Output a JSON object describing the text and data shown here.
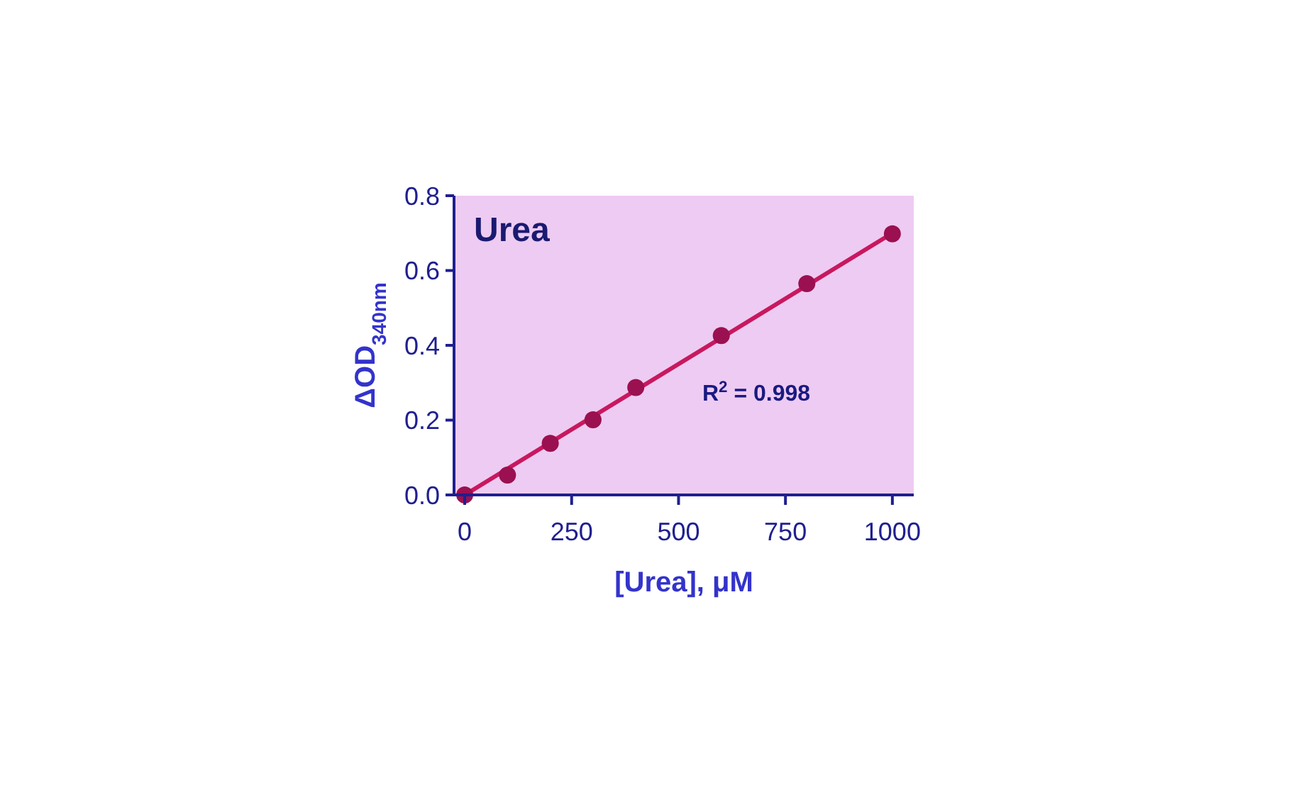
{
  "chart_data": {
    "type": "scatter",
    "title": "Urea",
    "xlabel": "[Urea], μM",
    "ylabel": "ΔOD$_{340nm}$",
    "annotations": [
      "R$^{2}$ = 0.998"
    ],
    "series": [
      {
        "type": "line",
        "x": [
          0,
          1000
        ],
        "values": [
          0.0,
          0.7
        ],
        "color": "#c8185f"
      },
      {
        "x": [
          0,
          100,
          200,
          300,
          400,
          600,
          800,
          1000
        ],
        "values": [
          0.0,
          0.053,
          0.138,
          0.201,
          0.287,
          0.426,
          0.565,
          0.698
        ],
        "color": "#9b1050",
        "marker": "circle"
      }
    ],
    "xlim": [
      -25,
      1050
    ],
    "ylim": [
      0,
      0.8
    ],
    "xticks": [
      0,
      250,
      500,
      750,
      1000
    ],
    "yticks": [
      {
        "value": 0,
        "label": "0.0"
      },
      0.2,
      0.4,
      0.6,
      0.8
    ]
  }
}
